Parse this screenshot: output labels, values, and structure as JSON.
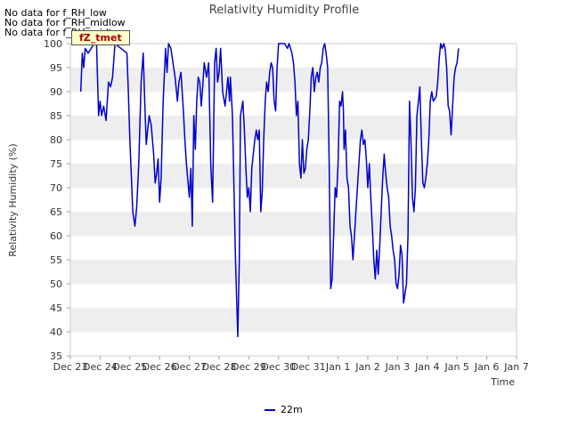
{
  "chart_data": {
    "type": "line",
    "title": "Relativity Humidity Profile",
    "xlabel": "Time",
    "ylabel": "Relativity Humidity (%)",
    "ylim": [
      35,
      100
    ],
    "yticks": [
      35,
      40,
      45,
      50,
      55,
      60,
      65,
      70,
      75,
      80,
      85,
      90,
      95,
      100
    ],
    "xlim": [
      0,
      15
    ],
    "xtick_labels": [
      "Dec 23",
      "Dec 24",
      "Dec 25",
      "Dec 26",
      "Dec 27",
      "Dec 28",
      "Dec 29",
      "Dec 30",
      "Dec 31",
      "Jan 1",
      "Jan 2",
      "Jan 3",
      "Jan 4",
      "Jan 5",
      "Jan 6",
      "Jan 7"
    ],
    "series": [
      {
        "name": "22m",
        "color": "#0000cc",
        "points": [
          [
            0.35,
            90
          ],
          [
            0.4,
            98
          ],
          [
            0.45,
            95
          ],
          [
            0.5,
            99
          ],
          [
            0.6,
            98
          ],
          [
            0.7,
            99
          ],
          [
            0.8,
            100
          ],
          [
            0.88,
            100
          ],
          [
            0.95,
            85
          ],
          [
            1.0,
            88
          ],
          [
            1.05,
            85
          ],
          [
            1.12,
            87
          ],
          [
            1.2,
            84
          ],
          [
            1.28,
            92
          ],
          [
            1.35,
            91
          ],
          [
            1.42,
            93
          ],
          [
            1.5,
            100
          ],
          [
            1.7,
            99
          ],
          [
            1.9,
            98
          ],
          [
            1.95,
            90
          ],
          [
            2.0,
            80
          ],
          [
            2.1,
            65
          ],
          [
            2.17,
            62
          ],
          [
            2.23,
            66
          ],
          [
            2.3,
            75
          ],
          [
            2.38,
            92
          ],
          [
            2.45,
            98
          ],
          [
            2.5,
            88
          ],
          [
            2.55,
            79
          ],
          [
            2.6,
            82
          ],
          [
            2.65,
            85
          ],
          [
            2.72,
            83
          ],
          [
            2.8,
            77
          ],
          [
            2.85,
            71
          ],
          [
            2.9,
            73
          ],
          [
            2.95,
            76
          ],
          [
            3.0,
            67
          ],
          [
            3.05,
            72
          ],
          [
            3.12,
            88
          ],
          [
            3.2,
            99
          ],
          [
            3.25,
            94
          ],
          [
            3.3,
            100
          ],
          [
            3.38,
            99
          ],
          [
            3.45,
            96
          ],
          [
            3.52,
            93
          ],
          [
            3.6,
            88
          ],
          [
            3.65,
            92
          ],
          [
            3.72,
            94
          ],
          [
            3.8,
            86
          ],
          [
            3.85,
            80
          ],
          [
            3.9,
            75
          ],
          [
            4.0,
            68
          ],
          [
            4.05,
            74
          ],
          [
            4.1,
            62
          ],
          [
            4.15,
            85
          ],
          [
            4.2,
            78
          ],
          [
            4.25,
            88
          ],
          [
            4.3,
            93
          ],
          [
            4.35,
            92
          ],
          [
            4.4,
            87
          ],
          [
            4.45,
            91
          ],
          [
            4.5,
            96
          ],
          [
            4.58,
            93
          ],
          [
            4.65,
            96
          ],
          [
            4.72,
            75
          ],
          [
            4.78,
            67
          ],
          [
            4.85,
            96
          ],
          [
            4.9,
            99
          ],
          [
            4.95,
            92
          ],
          [
            5.0,
            94
          ],
          [
            5.05,
            99
          ],
          [
            5.12,
            90
          ],
          [
            5.2,
            87
          ],
          [
            5.3,
            93
          ],
          [
            5.35,
            88
          ],
          [
            5.38,
            93
          ],
          [
            5.45,
            85
          ],
          [
            5.5,
            70
          ],
          [
            5.55,
            55
          ],
          [
            5.6,
            45
          ],
          [
            5.63,
            39
          ],
          [
            5.68,
            55
          ],
          [
            5.72,
            85
          ],
          [
            5.8,
            88
          ],
          [
            5.85,
            82
          ],
          [
            5.9,
            74
          ],
          [
            5.95,
            68
          ],
          [
            6.0,
            70
          ],
          [
            6.05,
            65
          ],
          [
            6.1,
            74
          ],
          [
            6.15,
            77
          ],
          [
            6.2,
            80
          ],
          [
            6.25,
            82
          ],
          [
            6.3,
            80
          ],
          [
            6.35,
            82
          ],
          [
            6.4,
            65
          ],
          [
            6.45,
            69
          ],
          [
            6.5,
            80
          ],
          [
            6.55,
            88
          ],
          [
            6.6,
            92
          ],
          [
            6.65,
            90
          ],
          [
            6.7,
            94
          ],
          [
            6.75,
            96
          ],
          [
            6.8,
            95
          ],
          [
            6.85,
            88
          ],
          [
            6.9,
            86
          ],
          [
            6.95,
            95
          ],
          [
            7.0,
            100
          ],
          [
            7.1,
            100
          ],
          [
            7.2,
            100
          ],
          [
            7.3,
            99
          ],
          [
            7.35,
            100
          ],
          [
            7.45,
            98
          ],
          [
            7.5,
            96
          ],
          [
            7.55,
            92
          ],
          [
            7.6,
            85
          ],
          [
            7.65,
            88
          ],
          [
            7.7,
            75
          ],
          [
            7.75,
            72
          ],
          [
            7.8,
            80
          ],
          [
            7.85,
            73
          ],
          [
            7.9,
            74
          ],
          [
            7.95,
            78
          ],
          [
            8.0,
            80
          ],
          [
            8.05,
            86
          ],
          [
            8.1,
            93
          ],
          [
            8.15,
            95
          ],
          [
            8.2,
            90
          ],
          [
            8.25,
            93
          ],
          [
            8.3,
            94
          ],
          [
            8.35,
            92
          ],
          [
            8.4,
            95
          ],
          [
            8.45,
            96
          ],
          [
            8.5,
            99
          ],
          [
            8.55,
            100
          ],
          [
            8.6,
            98
          ],
          [
            8.65,
            95
          ],
          [
            8.7,
            75
          ],
          [
            8.75,
            49
          ],
          [
            8.8,
            51
          ],
          [
            8.85,
            60
          ],
          [
            8.9,
            70
          ],
          [
            8.95,
            68
          ],
          [
            9.0,
            75
          ],
          [
            9.05,
            88
          ],
          [
            9.1,
            87
          ],
          [
            9.15,
            90
          ],
          [
            9.18,
            86
          ],
          [
            9.2,
            78
          ],
          [
            9.25,
            82
          ],
          [
            9.3,
            72
          ],
          [
            9.35,
            70
          ],
          [
            9.4,
            62
          ],
          [
            9.45,
            60
          ],
          [
            9.5,
            55
          ],
          [
            9.55,
            60
          ],
          [
            9.6,
            65
          ],
          [
            9.7,
            75
          ],
          [
            9.75,
            80
          ],
          [
            9.8,
            82
          ],
          [
            9.85,
            79
          ],
          [
            9.9,
            80
          ],
          [
            9.95,
            76
          ],
          [
            10.0,
            70
          ],
          [
            10.05,
            75
          ],
          [
            10.1,
            68
          ],
          [
            10.15,
            62
          ],
          [
            10.2,
            55
          ],
          [
            10.25,
            51
          ],
          [
            10.3,
            57
          ],
          [
            10.35,
            52
          ],
          [
            10.4,
            58
          ],
          [
            10.45,
            65
          ],
          [
            10.5,
            72
          ],
          [
            10.55,
            77
          ],
          [
            10.6,
            73
          ],
          [
            10.65,
            70
          ],
          [
            10.7,
            68
          ],
          [
            10.75,
            62
          ],
          [
            10.8,
            60
          ],
          [
            10.85,
            57
          ],
          [
            10.9,
            55
          ],
          [
            10.95,
            50
          ],
          [
            11.0,
            49
          ],
          [
            11.05,
            52
          ],
          [
            11.1,
            58
          ],
          [
            11.15,
            56
          ],
          [
            11.2,
            46
          ],
          [
            11.25,
            48
          ],
          [
            11.3,
            50
          ],
          [
            11.35,
            60
          ],
          [
            11.4,
            88
          ],
          [
            11.45,
            80
          ],
          [
            11.5,
            68
          ],
          [
            11.55,
            65
          ],
          [
            11.6,
            70
          ],
          [
            11.65,
            85
          ],
          [
            11.7,
            88
          ],
          [
            11.75,
            91
          ],
          [
            11.8,
            80
          ],
          [
            11.85,
            71
          ],
          [
            11.9,
            70
          ],
          [
            11.95,
            72
          ],
          [
            12.0,
            75
          ],
          [
            12.05,
            80
          ],
          [
            12.1,
            88
          ],
          [
            12.15,
            90
          ],
          [
            12.2,
            88
          ],
          [
            12.3,
            89
          ],
          [
            12.35,
            92
          ],
          [
            12.4,
            97
          ],
          [
            12.45,
            100
          ],
          [
            12.5,
            99
          ],
          [
            12.55,
            100
          ],
          [
            12.6,
            99
          ],
          [
            12.65,
            95
          ],
          [
            12.7,
            87
          ],
          [
            12.75,
            86
          ],
          [
            12.8,
            81
          ],
          [
            12.85,
            87
          ],
          [
            12.9,
            93
          ],
          [
            12.95,
            95
          ],
          [
            13.0,
            96
          ],
          [
            13.05,
            99
          ]
        ]
      }
    ],
    "legend": "bottom-center",
    "grid": true
  },
  "notes": {
    "no_data_1": "No data for f_RH_low",
    "no_data_2": "No data for f_RH_midlow",
    "no_data_3": "No data for f_RH_midtop",
    "badge": "fZ_tmet"
  },
  "legend_label": "22m",
  "colors": {
    "line": "#0000cc",
    "band": "#eeeeee",
    "frame": "#cccccc"
  }
}
